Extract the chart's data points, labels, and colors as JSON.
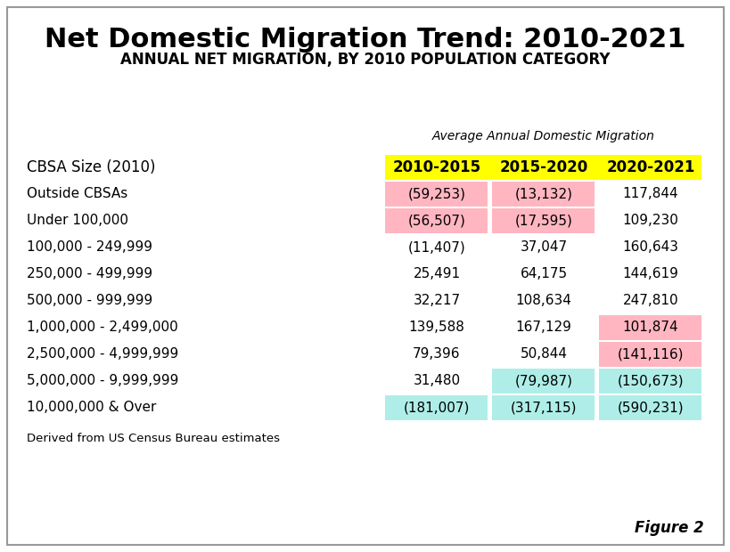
{
  "title": "Net Domestic Migration Trend: 2010-2021",
  "subtitle": "ANNUAL NET MIGRATION, BY 2010 POPULATION CATEGORY",
  "col_header_label": "Average Annual Domestic Migration",
  "col_headers": [
    "2010-2015",
    "2015-2020",
    "2020-2021"
  ],
  "row_labels": [
    "CBSA Size (2010)",
    "Outside CBSAs",
    "Under 100,000",
    "100,000 - 249,999",
    "250,000 - 499,999",
    "500,000 - 999,999",
    "1,000,000 - 2,499,000",
    "2,500,000 - 4,999,999",
    "5,000,000 - 9,999,999",
    "10,000,000 & Over"
  ],
  "data": [
    [
      "(59,253)",
      "(13,132)",
      "117,844"
    ],
    [
      "(56,507)",
      "(17,595)",
      "109,230"
    ],
    [
      "(11,407)",
      "37,047",
      "160,643"
    ],
    [
      "25,491",
      "64,175",
      "144,619"
    ],
    [
      "32,217",
      "108,634",
      "247,810"
    ],
    [
      "139,588",
      "167,129",
      "101,874"
    ],
    [
      "79,396",
      "50,844",
      "(141,116)"
    ],
    [
      "31,480",
      "(79,987)",
      "(150,673)"
    ],
    [
      "(181,007)",
      "(317,115)",
      "(590,231)"
    ]
  ],
  "cell_colors": [
    [
      "#FFB6C1",
      "#FFB6C1",
      "#FFFFFF"
    ],
    [
      "#FFB6C1",
      "#FFB6C1",
      "#FFFFFF"
    ],
    [
      "#FFFFFF",
      "#FFFFFF",
      "#FFFFFF"
    ],
    [
      "#FFFFFF",
      "#FFFFFF",
      "#FFFFFF"
    ],
    [
      "#FFFFFF",
      "#FFFFFF",
      "#FFFFFF"
    ],
    [
      "#FFFFFF",
      "#FFFFFF",
      "#FFB6C1"
    ],
    [
      "#FFFFFF",
      "#FFFFFF",
      "#FFB6C1"
    ],
    [
      "#FFFFFF",
      "#AFEEE8",
      "#AFEEE8"
    ],
    [
      "#AFEEE8",
      "#AFEEE8",
      "#AFEEE8"
    ]
  ],
  "header_bg": "#FFFF00",
  "footnote": "Derived from US Census Bureau estimates",
  "figure_label": "Figure 2",
  "background_color": "#FFFFFF",
  "title_fontsize": 22,
  "subtitle_fontsize": 12,
  "data_fontsize": 11,
  "header_fontsize": 12
}
